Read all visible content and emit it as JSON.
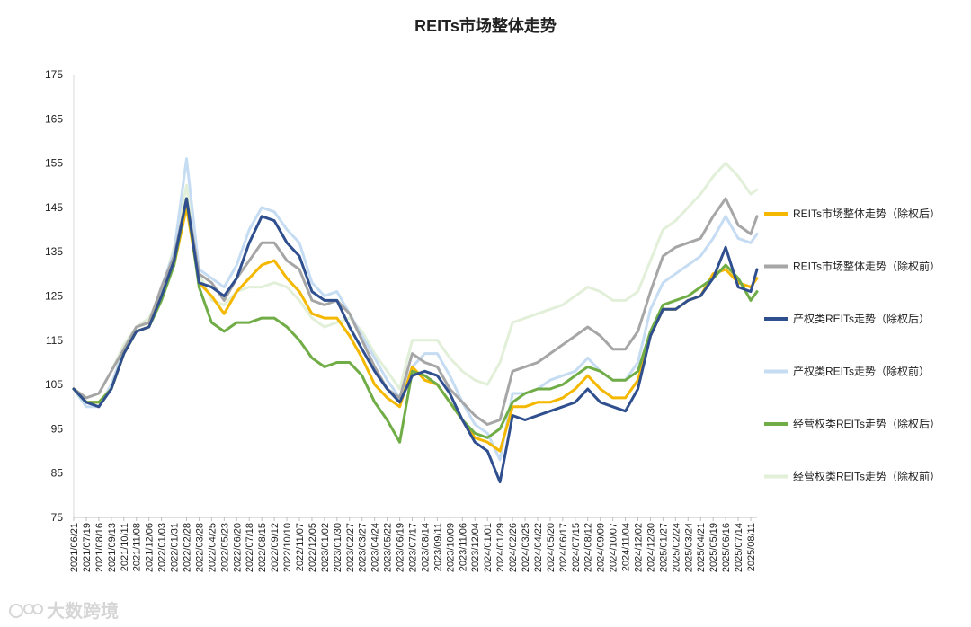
{
  "chart_data": {
    "type": "line",
    "title": "REITs市场整体走势",
    "xlabel": "",
    "ylabel": "",
    "ylim": [
      75,
      175
    ],
    "yticks": [
      75,
      85,
      95,
      105,
      115,
      125,
      135,
      145,
      155,
      165,
      175
    ],
    "grid": false,
    "legend_position": "right",
    "x_tick_labels": [
      "2021/06/21",
      "2021/07/19",
      "2021/08/16",
      "2021/09/13",
      "2021/10/11",
      "2021/11/08",
      "2021/12/06",
      "2022/01/03",
      "2022/01/31",
      "2022/02/28",
      "2022/03/28",
      "2022/04/25",
      "2022/05/23",
      "2022/06/20",
      "2022/07/18",
      "2022/08/15",
      "2022/09/12",
      "2022/10/10",
      "2022/11/07",
      "2022/12/05",
      "2023/01/02",
      "2023/01/30",
      "2023/02/27",
      "2023/03/27",
      "2023/04/24",
      "2023/05/22",
      "2023/06/19",
      "2023/07/17",
      "2023/08/14",
      "2023/09/11",
      "2023/10/09",
      "2023/11/06",
      "2023/12/04",
      "2024/01/01",
      "2024/01/29",
      "2024/02/26",
      "2024/03/25",
      "2024/04/22",
      "2024/05/20",
      "2024/06/17",
      "2024/07/15",
      "2024/08/12",
      "2024/09/09",
      "2024/10/07",
      "2024/11/04",
      "2024/12/02",
      "2024/12/30",
      "2025/01/27",
      "2025/02/24",
      "2025/03/24",
      "2025/04/21",
      "2025/05/19",
      "2025/06/16",
      "2025/07/14",
      "2025/08/11"
    ],
    "x": [
      "2021/06/21",
      "2021/07/19",
      "2021/08/16",
      "2021/09/13",
      "2021/10/11",
      "2021/11/08",
      "2021/12/06",
      "2022/01/03",
      "2022/01/31",
      "2022/02/28",
      "2022/03/28",
      "2022/04/25",
      "2022/05/23",
      "2022/06/20",
      "2022/07/18",
      "2022/08/15",
      "2022/09/12",
      "2022/10/10",
      "2022/11/07",
      "2022/12/05",
      "2023/01/02",
      "2023/01/30",
      "2023/02/27",
      "2023/03/27",
      "2023/04/24",
      "2023/05/22",
      "2023/06/19",
      "2023/07/17",
      "2023/08/14",
      "2023/09/11",
      "2023/10/09",
      "2023/11/06",
      "2023/12/04",
      "2024/01/01",
      "2024/01/29",
      "2024/02/26",
      "2024/03/25",
      "2024/04/22",
      "2024/05/20",
      "2024/06/17",
      "2024/07/15",
      "2024/08/12",
      "2024/09/09",
      "2024/10/07",
      "2024/11/04",
      "2024/12/02",
      "2024/12/30",
      "2025/01/27",
      "2025/02/24",
      "2025/03/24",
      "2025/04/21",
      "2025/05/19",
      "2025/06/16",
      "2025/07/14",
      "2025/08/11",
      "2025/08/25"
    ],
    "series": [
      {
        "name": "REITs市场整体走势（除权后）",
        "color": "#f5b800",
        "values": [
          104,
          101,
          101,
          104,
          112,
          117,
          118,
          125,
          132,
          145,
          128,
          125,
          121,
          126,
          129,
          132,
          133,
          129,
          126,
          121,
          120,
          120,
          116,
          111,
          105,
          102,
          100,
          109,
          106,
          105,
          101,
          97,
          93,
          92,
          90,
          100,
          100,
          101,
          101,
          102,
          104,
          107,
          104,
          102,
          102,
          106,
          116,
          122,
          122,
          124,
          125,
          130,
          131,
          128,
          127,
          129
        ]
      },
      {
        "name": "REITs市场整体走势（除权前）",
        "color": "#a6a6a6",
        "values": [
          104,
          102,
          103,
          108,
          113,
          118,
          119,
          127,
          134,
          147,
          130,
          128,
          124,
          129,
          133,
          137,
          137,
          133,
          131,
          124,
          123,
          124,
          121,
          115,
          109,
          104,
          102,
          112,
          110,
          109,
          104,
          101,
          98,
          96,
          97,
          108,
          109,
          110,
          112,
          114,
          116,
          118,
          116,
          113,
          113,
          117,
          126,
          134,
          136,
          137,
          138,
          143,
          147,
          141,
          139,
          143
        ]
      },
      {
        "name": "产权类REITs走势（除权后）",
        "color": "#2f4f8f",
        "values": [
          104,
          101,
          100,
          104,
          112,
          117,
          118,
          125,
          133,
          147,
          128,
          127,
          125,
          129,
          137,
          143,
          142,
          137,
          134,
          126,
          124,
          124,
          118,
          113,
          108,
          104,
          101,
          107,
          108,
          107,
          103,
          97,
          92,
          90,
          83,
          98,
          97,
          98,
          99,
          100,
          101,
          104,
          101,
          100,
          99,
          104,
          116,
          122,
          122,
          124,
          125,
          129,
          136,
          127,
          126,
          131
        ]
      },
      {
        "name": "产权类REITs走势（除权前）",
        "color": "#c5dcf2",
        "values": [
          104,
          100,
          100,
          105,
          113,
          118,
          119,
          127,
          135,
          156,
          131,
          129,
          127,
          132,
          140,
          145,
          144,
          140,
          137,
          128,
          125,
          126,
          121,
          116,
          111,
          106,
          102,
          109,
          112,
          112,
          107,
          101,
          96,
          94,
          88,
          103,
          103,
          104,
          106,
          107,
          108,
          111,
          108,
          106,
          106,
          110,
          122,
          128,
          130,
          132,
          134,
          138,
          143,
          138,
          137,
          139
        ]
      },
      {
        "name": "经营权类REITs走势（除权后）",
        "color": "#70ad47",
        "values": [
          104,
          101,
          101,
          104,
          112,
          117,
          118,
          124,
          132,
          147,
          127,
          119,
          117,
          119,
          119,
          120,
          120,
          118,
          115,
          111,
          109,
          110,
          110,
          107,
          101,
          97,
          92,
          108,
          107,
          105,
          101,
          97,
          94,
          93,
          95,
          101,
          103,
          104,
          104,
          105,
          107,
          109,
          108,
          106,
          106,
          108,
          117,
          123,
          124,
          125,
          127,
          129,
          132,
          129,
          124,
          126
        ]
      },
      {
        "name": "经营权类REITs走势（除权前）",
        "color": "#e2efd9",
        "values": [
          104,
          102,
          103,
          108,
          114,
          118,
          120,
          126,
          136,
          150,
          130,
          124,
          123,
          126,
          127,
          127,
          128,
          127,
          124,
          120,
          118,
          119,
          120,
          117,
          112,
          108,
          104,
          115,
          115,
          115,
          111,
          108,
          106,
          105,
          110,
          119,
          120,
          121,
          122,
          123,
          125,
          127,
          126,
          124,
          124,
          126,
          133,
          140,
          142,
          145,
          148,
          152,
          155,
          152,
          148,
          149
        ]
      }
    ]
  },
  "watermark": "大数跨境"
}
